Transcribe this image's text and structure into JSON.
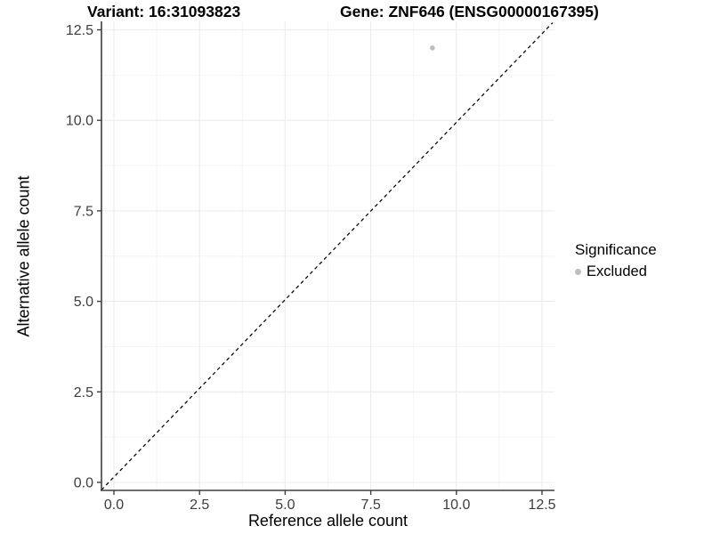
{
  "chart_data": {
    "type": "scatter",
    "title_left": "Variant: 16:31093823",
    "title_right": "Gene: ZNF646 (ENSG00000167395)",
    "xlabel": "Reference allele count",
    "ylabel": "Alternative allele count",
    "xlim": [
      -0.4,
      12.9
    ],
    "ylim": [
      -0.25,
      12.75
    ],
    "x_ticks": {
      "labels": [
        "0.0",
        "2.5",
        "5.0",
        "7.5",
        "10.0",
        "12.5"
      ],
      "values": [
        0,
        2.5,
        5,
        7.5,
        10,
        12.5
      ],
      "minor": [
        1.25,
        3.75,
        6.25,
        8.75,
        11.25
      ]
    },
    "y_ticks": {
      "labels": [
        "0.0",
        "2.5",
        "5.0",
        "7.5",
        "10.0",
        "12.5"
      ],
      "values": [
        0,
        2.5,
        5,
        7.5,
        10,
        12.5
      ],
      "minor": [
        1.25,
        3.75,
        6.25,
        8.75,
        11.25
      ]
    },
    "grid": "major and minor gridlines, light gray, white panel background",
    "series": [
      {
        "name": "Excluded",
        "marker": "circle",
        "color": "#bebebe",
        "points": [
          [
            9.3,
            12.0
          ]
        ]
      }
    ],
    "reference_line": {
      "kind": "identity (y = x) diagonal",
      "style": "dashed",
      "color": "#000000"
    },
    "legend": {
      "title": "Significance",
      "position": "right",
      "items": [
        {
          "label": "Excluded",
          "color": "#bebebe"
        }
      ]
    }
  },
  "colors": {
    "background": "#ffffff",
    "point": "#bebebe",
    "axis_line": "#3f3f3f",
    "tick_mark": "#3f3f3f",
    "tick_text": "#3d3d3d",
    "grid_major": "#ececec",
    "grid_minor": "#f4f4f4",
    "diagonal": "#000000"
  }
}
